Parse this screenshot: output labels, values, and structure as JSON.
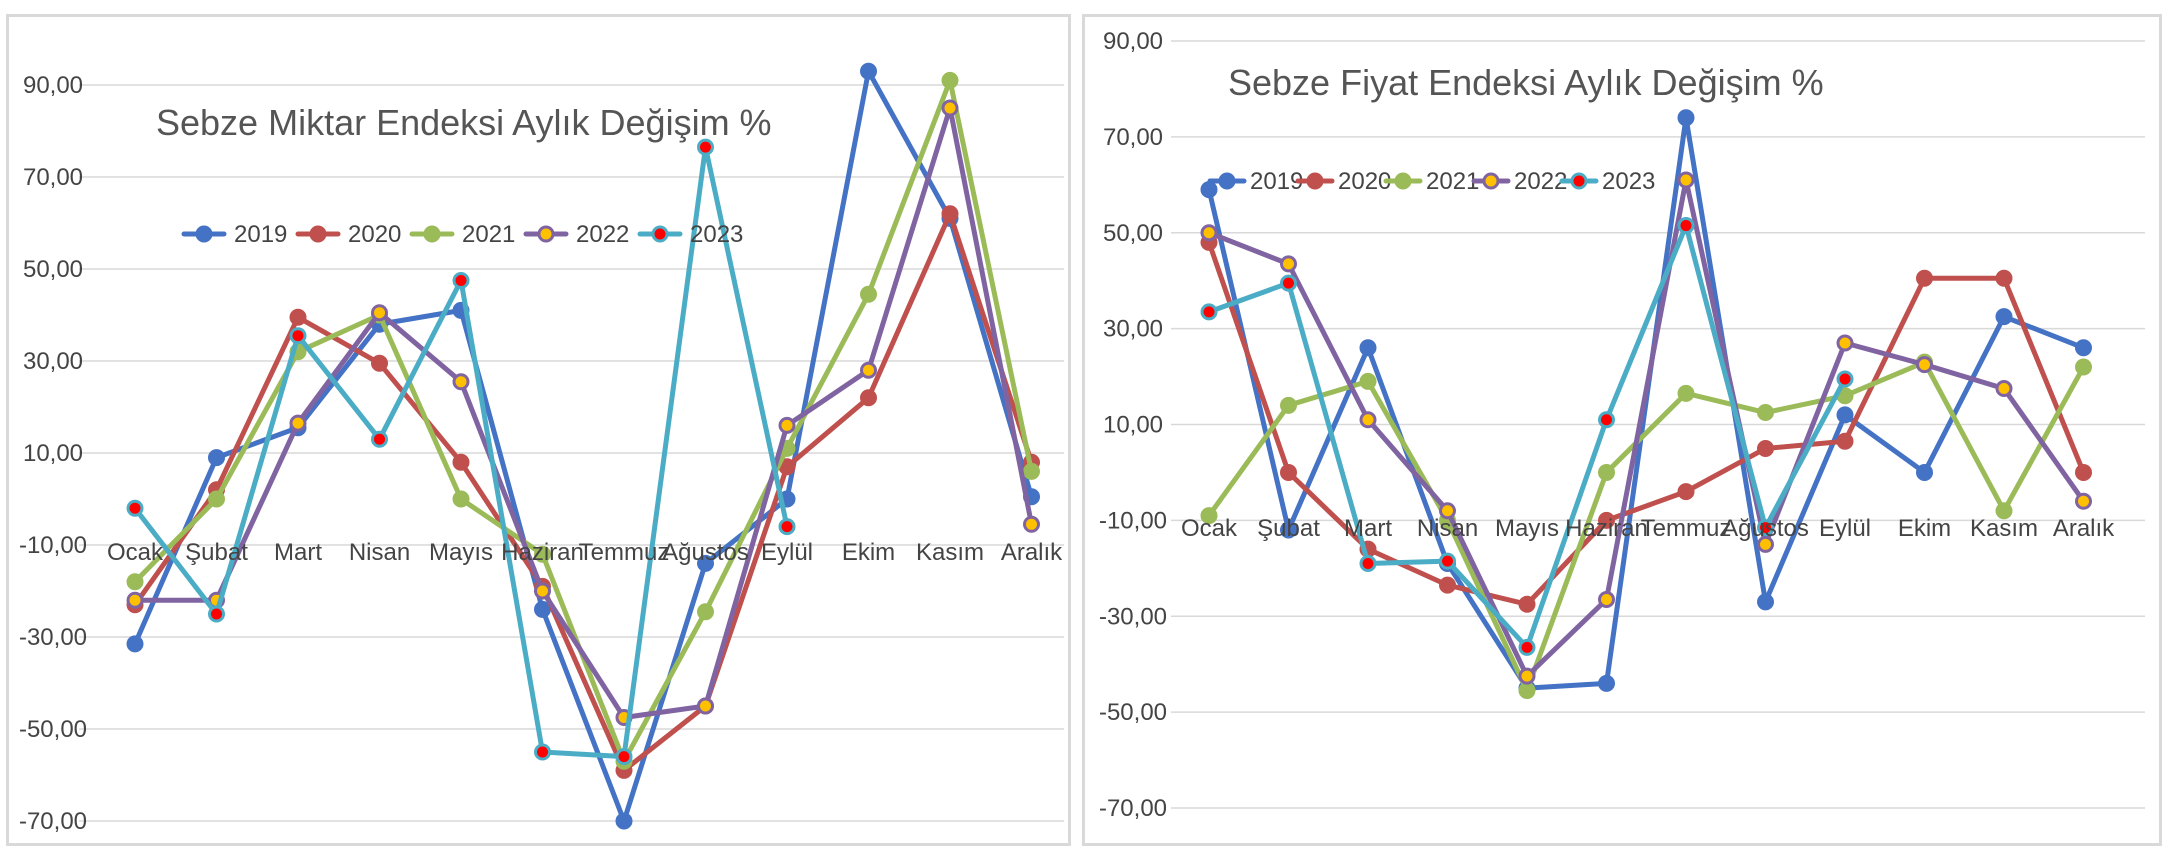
{
  "colors": {
    "2019": "#4472c4",
    "2020": "#c0504d",
    "2021": "#9bbb59",
    "2022": "#8064a2",
    "2023": "#4bacc6",
    "grid": "#d9d9d9",
    "axis_text": "#444444",
    "title_text": "#555555"
  },
  "chart_data": [
    {
      "type": "line",
      "title": "Sebze Miktar Endeksi Aylık Değişim %",
      "categories": [
        "Ocak",
        "Şubat",
        "Mart",
        "Nisan",
        "Mayıs",
        "Haziran",
        "Temmuz",
        "Ağustos",
        "Eylül",
        "Ekim",
        "Kasım",
        "Aralık"
      ],
      "ylim": [
        -70,
        90
      ],
      "yticks": [
        "-70,00",
        "-50,00",
        "-30,00",
        "-10,00",
        "10,00",
        "30,00",
        "50,00",
        "70,00",
        "90,00"
      ],
      "grid": true,
      "legend": "top",
      "series": [
        {
          "name": "2019",
          "values": [
            -31.5,
            9,
            15.5,
            38,
            41,
            -24,
            -70,
            -14,
            0,
            93,
            61,
            0.5
          ]
        },
        {
          "name": "2020",
          "values": [
            -23,
            2,
            39.5,
            29.5,
            8,
            -19,
            -59,
            -45,
            7,
            22,
            62,
            8
          ]
        },
        {
          "name": "2021",
          "values": [
            -18,
            0,
            32,
            40,
            0,
            -12,
            -57,
            -24.5,
            11,
            44.5,
            91,
            6
          ]
        },
        {
          "name": "2022",
          "values": [
            -22,
            -22,
            16.5,
            40.5,
            25.5,
            -20,
            -47.5,
            -45,
            16,
            28,
            85,
            -5.5
          ]
        },
        {
          "name": "2023",
          "values": [
            -2,
            -25,
            35.5,
            13,
            47.5,
            -55,
            -56,
            76.5,
            -6,
            null,
            null,
            null
          ]
        }
      ]
    },
    {
      "type": "line",
      "title": "Sebze Fiyat Endeksi Aylık Değişim %",
      "categories": [
        "Ocak",
        "Şubat",
        "Mart",
        "Nisan",
        "Mayıs",
        "Haziran",
        "Temmuz",
        "Ağustos",
        "Eylül",
        "Ekim",
        "Kasım",
        "Aralık"
      ],
      "ylim": [
        -70,
        90
      ],
      "yticks": [
        "-70,00",
        "-50,00",
        "-30,00",
        "-10,00",
        "10,00",
        "30,00",
        "50,00",
        "70,00",
        "90,00"
      ],
      "grid": true,
      "legend": "top-left",
      "series": [
        {
          "name": "2019",
          "values": [
            59,
            -12,
            26,
            -19,
            -45,
            -44,
            74,
            -27,
            12,
            0,
            32.5,
            26
          ]
        },
        {
          "name": "2020",
          "values": [
            48,
            0,
            -16,
            -23.5,
            -27.5,
            -10,
            -4,
            5,
            6.5,
            40.5,
            40.5,
            0
          ]
        },
        {
          "name": "2021",
          "values": [
            -9,
            14,
            19,
            -10,
            -45.5,
            0,
            16.5,
            12.5,
            16,
            23,
            -8,
            22
          ]
        },
        {
          "name": "2022",
          "values": [
            50,
            43.5,
            11,
            -8,
            -42.5,
            -26.5,
            61,
            -15,
            27,
            22.5,
            17.5,
            -6
          ]
        },
        {
          "name": "2023",
          "values": [
            33.5,
            39.5,
            -19,
            -18.5,
            -36.5,
            11,
            51.5,
            -11.5,
            19.5,
            null,
            null,
            null
          ]
        }
      ]
    }
  ]
}
